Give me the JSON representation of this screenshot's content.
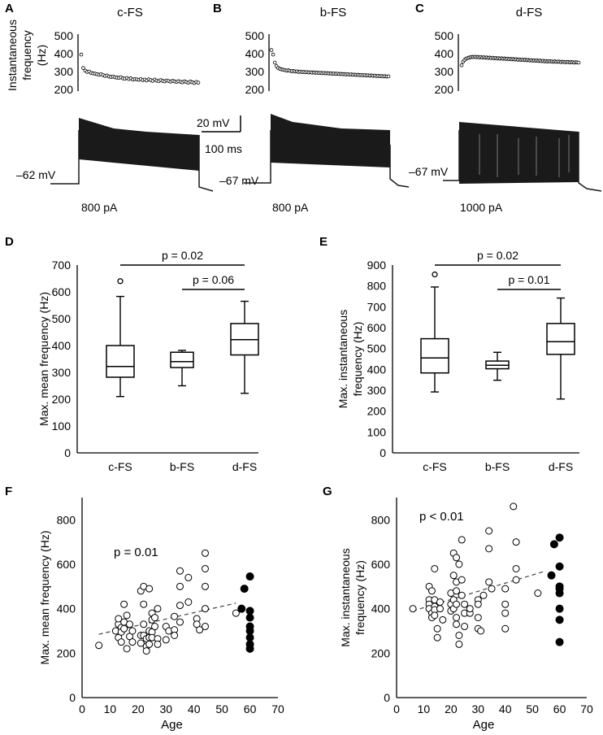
{
  "figure": {
    "panels": {
      "A": {
        "letter": "A",
        "title": "c-FS",
        "rmp": "–62 mV",
        "current": "800 pA"
      },
      "B": {
        "letter": "B",
        "title": "b-FS",
        "rmp": "–67 mV",
        "current": "800 pA"
      },
      "C": {
        "letter": "C",
        "title": "d-FS",
        "rmp": "–67 mV",
        "current": "1000 pA"
      }
    },
    "inst_ylabel_line1": "Instantaneous",
    "inst_ylabel_line2": "frequency",
    "inst_ylabel_line3": "(Hz)",
    "scale_v": "20 mV",
    "scale_t": "100 ms",
    "colors": {
      "trace": "#1a1a1a",
      "axis": "#000000",
      "marker_open": "#ffffff",
      "marker_fill": "#000000"
    }
  },
  "chart_data": [
    {
      "id": "A",
      "type": "scatter",
      "title": "c-FS",
      "ylim": [
        200,
        500
      ],
      "yticks": [
        200,
        300,
        400,
        500
      ],
      "x": [
        1,
        2,
        3,
        4,
        5,
        6,
        7,
        8,
        9,
        10,
        11,
        12,
        13,
        14,
        15,
        16,
        17,
        18,
        19,
        20,
        21,
        22,
        23,
        24,
        25,
        26,
        27,
        28,
        29,
        30,
        31,
        32,
        33,
        34,
        35,
        36,
        37,
        38,
        39,
        40,
        41,
        42,
        43,
        44,
        45,
        46,
        47,
        48,
        49,
        50,
        51,
        52,
        53,
        54,
        55,
        56,
        57,
        58,
        59,
        60
      ],
      "values": [
        395,
        320,
        305,
        298,
        300,
        292,
        290,
        288,
        285,
        282,
        285,
        280,
        275,
        278,
        272,
        270,
        272,
        268,
        266,
        265,
        268,
        262,
        260,
        264,
        258,
        262,
        255,
        258,
        256,
        254,
        258,
        252,
        255,
        250,
        256,
        252,
        248,
        255,
        250,
        246,
        252,
        248,
        245,
        250,
        247,
        244,
        248,
        245,
        242,
        246,
        243,
        240,
        245,
        241,
        238,
        244,
        240,
        236,
        242,
        238
      ]
    },
    {
      "id": "B",
      "type": "scatter",
      "title": "b-FS",
      "ylim": [
        200,
        500
      ],
      "yticks": [
        200,
        300,
        400,
        500
      ],
      "x": [
        1,
        2,
        3,
        4,
        5,
        6,
        7,
        8,
        9,
        10,
        11,
        12,
        13,
        14,
        15,
        16,
        17,
        18,
        19,
        20,
        21,
        22,
        23,
        24,
        25,
        26,
        27,
        28,
        29,
        30,
        31,
        32,
        33,
        34,
        35,
        36,
        37,
        38,
        39,
        40,
        41,
        42,
        43,
        44,
        45,
        46,
        47,
        48,
        49,
        50,
        51,
        52,
        53,
        54,
        55,
        56,
        57,
        58,
        59,
        60,
        61,
        62,
        63,
        64,
        65,
        66,
        67,
        68,
        69,
        70
      ],
      "values": [
        420,
        395,
        350,
        330,
        320,
        315,
        312,
        310,
        308,
        305,
        307,
        304,
        302,
        303,
        300,
        301,
        298,
        300,
        297,
        298,
        296,
        297,
        295,
        296,
        294,
        295,
        293,
        294,
        292,
        293,
        291,
        292,
        290,
        291,
        289,
        290,
        288,
        289,
        287,
        288,
        286,
        287,
        285,
        286,
        284,
        285,
        283,
        284,
        282,
        283,
        281,
        282,
        280,
        281,
        279,
        280,
        278,
        279,
        277,
        278,
        276,
        277,
        275,
        276,
        274,
        275,
        273,
        274,
        272,
        273
      ]
    },
    {
      "id": "C",
      "type": "scatter",
      "title": "d-FS",
      "ylim": [
        200,
        500
      ],
      "yticks": [
        200,
        300,
        400,
        500
      ],
      "x": [
        1,
        2,
        3,
        4,
        5,
        6,
        7,
        8,
        9,
        10,
        11,
        12,
        13,
        14,
        15,
        16,
        17,
        18,
        19,
        20,
        21,
        22,
        23,
        24,
        25,
        26,
        27,
        28,
        29,
        30,
        31,
        32,
        33,
        34,
        35,
        36,
        37,
        38,
        39,
        40,
        41,
        42,
        43,
        44,
        45,
        46,
        47,
        48,
        49,
        50,
        51,
        52,
        53,
        54,
        55,
        56,
        57,
        58,
        59,
        60,
        61,
        62,
        63,
        64,
        65,
        66,
        67,
        68,
        69,
        70,
        71,
        72,
        73,
        74,
        75,
        76,
        77,
        78,
        79,
        80
      ],
      "values": [
        335,
        355,
        365,
        372,
        375,
        378,
        380,
        382,
        381,
        383,
        380,
        382,
        379,
        381,
        378,
        380,
        377,
        379,
        376,
        378,
        375,
        377,
        374,
        376,
        373,
        375,
        372,
        374,
        371,
        373,
        370,
        372,
        369,
        371,
        368,
        370,
        367,
        369,
        366,
        368,
        365,
        367,
        364,
        366,
        363,
        365,
        362,
        364,
        361,
        363,
        360,
        362,
        359,
        361,
        358,
        360,
        357,
        359,
        356,
        358,
        357,
        356,
        355,
        357,
        354,
        356,
        355,
        353,
        355,
        354,
        352,
        354,
        353,
        351,
        353,
        352,
        350,
        352,
        351,
        350
      ]
    },
    {
      "id": "D",
      "type": "box",
      "ylabel": "Max. mean frequency (Hz)",
      "ylim": [
        0,
        700
      ],
      "yticks": [
        0,
        100,
        200,
        300,
        400,
        500,
        600,
        700
      ],
      "categories": [
        "c-FS",
        "b-FS",
        "d-FS"
      ],
      "boxes": [
        {
          "min": 210,
          "q1": 282,
          "median": 322,
          "q3": 400,
          "max": 583,
          "outliers": [
            640
          ]
        },
        {
          "min": 250,
          "q1": 318,
          "median": 340,
          "q3": 375,
          "max": 382,
          "outliers": []
        },
        {
          "min": 222,
          "q1": 365,
          "median": 422,
          "q3": 482,
          "max": 565,
          "outliers": []
        }
      ],
      "annotations": [
        {
          "from": 0,
          "to": 2,
          "label": "p = 0.02"
        },
        {
          "from": 1,
          "to": 2,
          "label": "p = 0.06"
        }
      ]
    },
    {
      "id": "E",
      "type": "box",
      "ylabel_line1": "Max. instantaneous",
      "ylabel_line2": "frequency (Hz)",
      "ylim": [
        0,
        900
      ],
      "yticks": [
        0,
        100,
        200,
        300,
        400,
        500,
        600,
        700,
        800,
        900
      ],
      "categories": [
        "c-FS",
        "b-FS",
        "d-FS"
      ],
      "boxes": [
        {
          "min": 292,
          "q1": 383,
          "median": 455,
          "q3": 547,
          "max": 795,
          "outliers": [
            855
          ]
        },
        {
          "min": 348,
          "q1": 403,
          "median": 420,
          "q3": 440,
          "max": 482,
          "outliers": []
        },
        {
          "min": 258,
          "q1": 472,
          "median": 533,
          "q3": 620,
          "max": 742,
          "outliers": []
        }
      ],
      "annotations": [
        {
          "from": 0,
          "to": 2,
          "label": "p = 0.02"
        },
        {
          "from": 1,
          "to": 2,
          "label": "p = 0.01"
        }
      ]
    },
    {
      "id": "F",
      "type": "scatter",
      "xlabel": "Age",
      "ylabel": "Max. mean frequency (Hz)",
      "xlim": [
        0,
        70
      ],
      "ylim": [
        0,
        900
      ],
      "xticks": [
        0,
        10,
        20,
        30,
        40,
        50,
        60,
        70
      ],
      "yticks": [
        0,
        200,
        400,
        600,
        800
      ],
      "annotation": "p = 0.01",
      "trend": [
        [
          6,
          285
        ],
        [
          55,
          425
        ]
      ],
      "open": [
        [
          6,
          235
        ],
        [
          12,
          300
        ],
        [
          13,
          270
        ],
        [
          13,
          330
        ],
        [
          13,
          355
        ],
        [
          14,
          315
        ],
        [
          14,
          295
        ],
        [
          14,
          250
        ],
        [
          15,
          420
        ],
        [
          15,
          340
        ],
        [
          15,
          310
        ],
        [
          16,
          370
        ],
        [
          16,
          220
        ],
        [
          17,
          330
        ],
        [
          17,
          275
        ],
        [
          18,
          300
        ],
        [
          18,
          250
        ],
        [
          21,
          480
        ],
        [
          21,
          280
        ],
        [
          21,
          245
        ],
        [
          22,
          500
        ],
        [
          22,
          420
        ],
        [
          22,
          330
        ],
        [
          22,
          280
        ],
        [
          23,
          265
        ],
        [
          23,
          230
        ],
        [
          23,
          210
        ],
        [
          24,
          490
        ],
        [
          24,
          300
        ],
        [
          24,
          270
        ],
        [
          24,
          240
        ],
        [
          25,
          380
        ],
        [
          25,
          350
        ],
        [
          25,
          295
        ],
        [
          25,
          270
        ],
        [
          26,
          360
        ],
        [
          26,
          320
        ],
        [
          27,
          400
        ],
        [
          27,
          265
        ],
        [
          27,
          240
        ],
        [
          30,
          320
        ],
        [
          30,
          260
        ],
        [
          31,
          300
        ],
        [
          33,
          365
        ],
        [
          33,
          305
        ],
        [
          33,
          280
        ],
        [
          35,
          570
        ],
        [
          35,
          500
        ],
        [
          35,
          415
        ],
        [
          35,
          340
        ],
        [
          38,
          540
        ],
        [
          38,
          430
        ],
        [
          41,
          355
        ],
        [
          41,
          330
        ],
        [
          42,
          305
        ],
        [
          44,
          650
        ],
        [
          44,
          580
        ],
        [
          44,
          500
        ],
        [
          44,
          400
        ],
        [
          44,
          320
        ],
        [
          55,
          380
        ]
      ],
      "filled": [
        [
          57,
          400
        ],
        [
          58,
          490
        ],
        [
          60,
          545
        ],
        [
          60,
          390
        ],
        [
          60,
          360
        ],
        [
          60,
          320
        ],
        [
          60,
          300
        ],
        [
          60,
          270
        ],
        [
          60,
          240
        ],
        [
          60,
          220
        ]
      ]
    },
    {
      "id": "G",
      "type": "scatter",
      "xlabel": "Age",
      "ylabel_line1": "Max. instantaneous",
      "ylabel_line2": "frequency (Hz)",
      "xlim": [
        0,
        70
      ],
      "ylim": [
        0,
        900
      ],
      "xticks": [
        0,
        10,
        20,
        30,
        40,
        50,
        60,
        70
      ],
      "yticks": [
        0,
        200,
        400,
        600,
        800
      ],
      "annotation": "p < 0.01",
      "trend": [
        [
          6,
          390
        ],
        [
          55,
          570
        ]
      ],
      "open": [
        [
          6,
          400
        ],
        [
          12,
          500
        ],
        [
          12,
          440
        ],
        [
          12,
          420
        ],
        [
          12,
          400
        ],
        [
          13,
          480
        ],
        [
          13,
          380
        ],
        [
          13,
          360
        ],
        [
          14,
          580
        ],
        [
          14,
          440
        ],
        [
          14,
          410
        ],
        [
          14,
          395
        ],
        [
          14,
          370
        ],
        [
          15,
          310
        ],
        [
          15,
          270
        ],
        [
          16,
          430
        ],
        [
          16,
          400
        ],
        [
          17,
          350
        ],
        [
          20,
          470
        ],
        [
          20,
          420
        ],
        [
          20,
          390
        ],
        [
          21,
          650
        ],
        [
          21,
          550
        ],
        [
          21,
          440
        ],
        [
          21,
          400
        ],
        [
          22,
          630
        ],
        [
          22,
          520
        ],
        [
          22,
          480
        ],
        [
          22,
          420
        ],
        [
          22,
          360
        ],
        [
          22,
          330
        ],
        [
          23,
          600
        ],
        [
          23,
          280
        ],
        [
          23,
          240
        ],
        [
          24,
          710
        ],
        [
          24,
          530
        ],
        [
          24,
          460
        ],
        [
          25,
          420
        ],
        [
          25,
          380
        ],
        [
          25,
          320
        ],
        [
          27,
          380
        ],
        [
          27,
          400
        ],
        [
          30,
          440
        ],
        [
          30,
          420
        ],
        [
          30,
          360
        ],
        [
          30,
          310
        ],
        [
          31,
          300
        ],
        [
          32,
          460
        ],
        [
          34,
          750
        ],
        [
          34,
          670
        ],
        [
          34,
          520
        ],
        [
          35,
          490
        ],
        [
          40,
          490
        ],
        [
          40,
          420
        ],
        [
          40,
          380
        ],
        [
          40,
          310
        ],
        [
          43,
          860
        ],
        [
          44,
          700
        ],
        [
          44,
          580
        ],
        [
          44,
          530
        ],
        [
          52,
          470
        ]
      ],
      "filled": [
        [
          57,
          550
        ],
        [
          58,
          690
        ],
        [
          60,
          720
        ],
        [
          60,
          590
        ],
        [
          60,
          500
        ],
        [
          60,
          490
        ],
        [
          60,
          470
        ],
        [
          60,
          400
        ],
        [
          60,
          350
        ],
        [
          60,
          250
        ]
      ]
    }
  ]
}
